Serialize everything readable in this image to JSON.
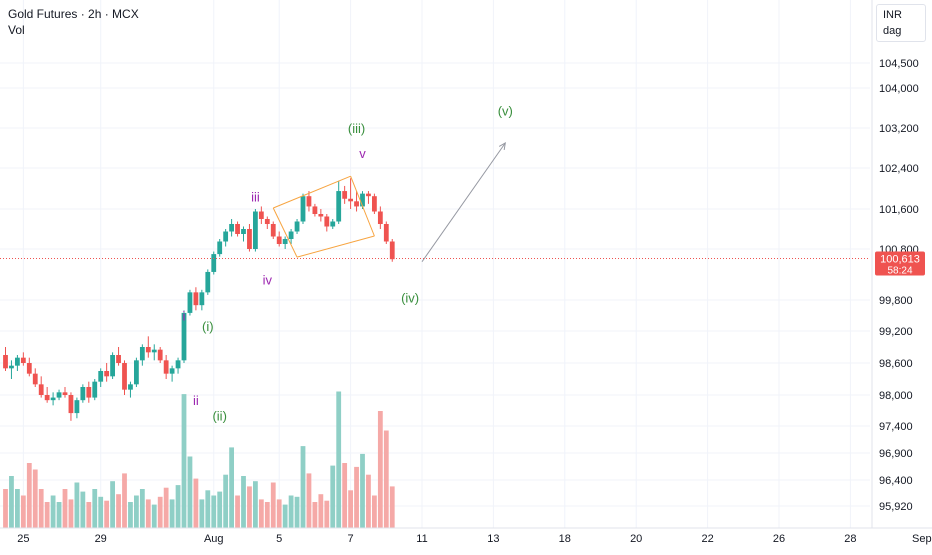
{
  "header": {
    "title": "Gold Futures · 2h · MCX",
    "volume_label": "Vol"
  },
  "scale_box": {
    "currency": "INR",
    "mode": "dag"
  },
  "colors": {
    "up": "#26a69a",
    "down": "#ef5350",
    "vol_up": "#8fcfc6",
    "vol_down": "#f5a9a7",
    "wave_minor": "#388e3c",
    "wave_sub": "#9c27b0",
    "channel": "#f7a440",
    "arrow": "#9598a1",
    "grid": "#f0f3fa"
  },
  "last_price": {
    "price": "100,613",
    "countdown": "58:24"
  },
  "chart_data": {
    "type": "candlestick",
    "instrument": "Gold Futures",
    "interval": "2h",
    "exchange": "MCX",
    "currency": "INR",
    "y_ticks": [
      104500,
      104000,
      103200,
      102400,
      101600,
      100800,
      99800,
      99200,
      98600,
      98000,
      97400,
      96900,
      96400,
      95920
    ],
    "y_tick_labels": [
      "104,500",
      "104,000",
      "103,200",
      "102,400",
      "101,600",
      "100,800",
      "99,800",
      "99,200",
      "98,600",
      "98,000",
      "97,400",
      "96,900",
      "96,400",
      "95,920"
    ],
    "x_ticks": [
      {
        "label": "25",
        "i": 3
      },
      {
        "label": "29",
        "i": 16
      },
      {
        "label": "Aug",
        "i": 35
      },
      {
        "label": "5",
        "i": 46
      },
      {
        "label": "7",
        "i": 58
      },
      {
        "label": "11",
        "i": 70
      },
      {
        "label": "13",
        "i": 82
      },
      {
        "label": "18",
        "i": 94
      },
      {
        "label": "20",
        "i": 106
      },
      {
        "label": "22",
        "i": 118
      },
      {
        "label": "26",
        "i": 130
      },
      {
        "label": "28",
        "i": 142
      },
      {
        "label": "Sep",
        "i": 154
      }
    ],
    "candles": [
      [
        98750,
        98900,
        98450,
        98500
      ],
      [
        98500,
        98650,
        98300,
        98550
      ],
      [
        98550,
        98750,
        98450,
        98700
      ],
      [
        98700,
        98800,
        98550,
        98600
      ],
      [
        98600,
        98700,
        98350,
        98400
      ],
      [
        98400,
        98500,
        98150,
        98200
      ],
      [
        98200,
        98350,
        97950,
        98000
      ],
      [
        98000,
        98150,
        97850,
        97900
      ],
      [
        97900,
        98050,
        97800,
        97950
      ],
      [
        97950,
        98100,
        97900,
        98050
      ],
      [
        98050,
        98150,
        97950,
        98000
      ],
      [
        98000,
        98050,
        97500,
        97650
      ],
      [
        97650,
        97950,
        97550,
        97900
      ],
      [
        97900,
        98200,
        97850,
        98150
      ],
      [
        98150,
        98250,
        97850,
        97950
      ],
      [
        97950,
        98300,
        97900,
        98250
      ],
      [
        98250,
        98500,
        98150,
        98450
      ],
      [
        98450,
        98600,
        98250,
        98350
      ],
      [
        98350,
        98800,
        98300,
        98750
      ],
      [
        98750,
        98900,
        98550,
        98600
      ],
      [
        98600,
        98650,
        98000,
        98100
      ],
      [
        98100,
        98250,
        97950,
        98200
      ],
      [
        98200,
        98700,
        98150,
        98650
      ],
      [
        98650,
        98950,
        98550,
        98900
      ],
      [
        98900,
        99100,
        98700,
        98800
      ],
      [
        98800,
        98950,
        98650,
        98850
      ],
      [
        98850,
        98900,
        98600,
        98650
      ],
      [
        98650,
        98750,
        98300,
        98400
      ],
      [
        98400,
        98550,
        98250,
        98500
      ],
      [
        98500,
        98700,
        98400,
        98650
      ],
      [
        98650,
        99600,
        98600,
        99550
      ],
      [
        99550,
        100000,
        99500,
        99950
      ],
      [
        99950,
        100050,
        99600,
        99700
      ],
      [
        99700,
        100000,
        99600,
        99950
      ],
      [
        99950,
        100400,
        99900,
        100350
      ],
      [
        100350,
        100750,
        100300,
        100700
      ],
      [
        100700,
        101000,
        100650,
        100950
      ],
      [
        100950,
        101200,
        100850,
        101150
      ],
      [
        101150,
        101400,
        101050,
        101300
      ],
      [
        101300,
        101350,
        101050,
        101100
      ],
      [
        101100,
        101250,
        100950,
        101200
      ],
      [
        101200,
        101300,
        100750,
        100800
      ],
      [
        100800,
        101600,
        100750,
        101550
      ],
      [
        101550,
        101650,
        101300,
        101400
      ],
      [
        101400,
        101450,
        101200,
        101300
      ],
      [
        101300,
        101350,
        101000,
        101050
      ],
      [
        101050,
        101150,
        100850,
        100900
      ],
      [
        100900,
        101050,
        100800,
        101000
      ],
      [
        101000,
        101200,
        100900,
        101150
      ],
      [
        101150,
        101400,
        101100,
        101350
      ],
      [
        101350,
        101900,
        101300,
        101850
      ],
      [
        101850,
        101950,
        101550,
        101650
      ],
      [
        101650,
        101700,
        101450,
        101500
      ],
      [
        101500,
        101600,
        101350,
        101450
      ],
      [
        101450,
        101500,
        101150,
        101250
      ],
      [
        101250,
        101400,
        101200,
        101350
      ],
      [
        101350,
        102150,
        101300,
        101950
      ],
      [
        101950,
        102050,
        101700,
        101800
      ],
      [
        101800,
        102200,
        101600,
        101750
      ],
      [
        101750,
        101950,
        101550,
        101650
      ],
      [
        101650,
        101950,
        101600,
        101900
      ],
      [
        101900,
        101950,
        101700,
        101850
      ],
      [
        101850,
        101900,
        101500,
        101550
      ],
      [
        101550,
        101650,
        101200,
        101300
      ],
      [
        101300,
        101350,
        100900,
        100950
      ],
      [
        100950,
        101000,
        100550,
        100600
      ]
    ],
    "volume": [
      3,
      4,
      3,
      2.5,
      5,
      4.5,
      3,
      2,
      2.5,
      2,
      3,
      2.2,
      3.5,
      2.8,
      2,
      3,
      2.4,
      2.1,
      3.6,
      2.6,
      4.2,
      2,
      2.5,
      3,
      2.2,
      1.8,
      2.4,
      3.1,
      2.2,
      3.3,
      10.3,
      5.5,
      3.8,
      2.2,
      2.9,
      2.5,
      2.8,
      4.1,
      6.2,
      2.5,
      4,
      3.2,
      3.6,
      2.2,
      2,
      3.5,
      2.2,
      1.8,
      2.5,
      2.4,
      6.3,
      4.2,
      2,
      2.6,
      2.1,
      4.8,
      10.5,
      5,
      2.9,
      4.7,
      5.7,
      4.1,
      2.5,
      9,
      7.5,
      3.2
    ],
    "wave_labels_minor": [
      {
        "text": "(i)",
        "i": 34,
        "price": 99200,
        "pos": "above"
      },
      {
        "text": "(ii)",
        "i": 36,
        "price": 97700,
        "pos": "below"
      },
      {
        "text": "(iii)",
        "i": 59,
        "price": 103100,
        "pos": "above"
      },
      {
        "text": "(iv)",
        "i": 68,
        "price": 99950,
        "pos": "below"
      },
      {
        "text": "(v)",
        "i": 84,
        "price": 103450,
        "pos": "above"
      }
    ],
    "wave_labels_sub": [
      {
        "text": "i",
        "i": 30,
        "price": 99400,
        "pos": "above"
      },
      {
        "text": "ii",
        "i": 32,
        "price": 98000,
        "pos": "below"
      },
      {
        "text": "iii",
        "i": 42,
        "price": 101750,
        "pos": "above"
      },
      {
        "text": "iv",
        "i": 44,
        "price": 100300,
        "pos": "below"
      },
      {
        "text": "v",
        "i": 60,
        "price": 102600,
        "pos": "above"
      }
    ],
    "channel": {
      "upper": [
        {
          "i": 45,
          "price": 101620
        },
        {
          "i": 58,
          "price": 102240
        }
      ],
      "lower": [
        {
          "i": 49,
          "price": 100640
        },
        {
          "i": 62,
          "price": 101060
        }
      ]
    },
    "projection": {
      "from": {
        "i": 70,
        "price": 100550
      },
      "to": {
        "i": 84,
        "price": 102900
      }
    },
    "last_price_value": 100613
  }
}
